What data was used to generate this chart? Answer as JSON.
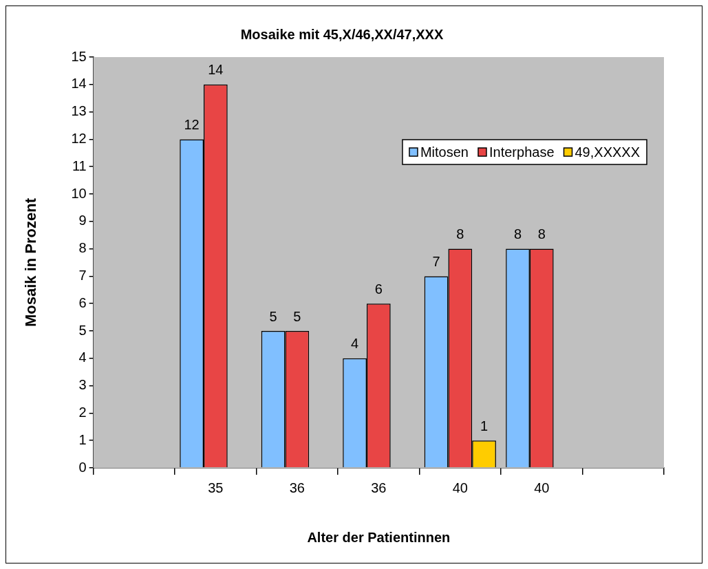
{
  "chart_data": {
    "type": "bar",
    "title": "Mosaike mit 45,X/46,XX/47,XXX",
    "xlabel": "Alter der Patientinnen",
    "ylabel": "Mosaik in Prozent",
    "categories": [
      null,
      "35",
      "36",
      "36",
      "40",
      "40",
      null
    ],
    "series": [
      {
        "name": "Mitosen",
        "color": "#80bfff",
        "values": [
          null,
          12,
          5,
          4,
          7,
          8,
          null
        ]
      },
      {
        "name": "Interphase",
        "color": "#e84545",
        "values": [
          null,
          14,
          5,
          6,
          8,
          8,
          null
        ]
      },
      {
        "name": "49,XXXXX",
        "color": "#ffcc00",
        "values": [
          null,
          null,
          null,
          null,
          1,
          null,
          null
        ]
      }
    ],
    "ylim": [
      0,
      15
    ],
    "yticks": [
      0,
      1,
      2,
      3,
      4,
      5,
      6,
      7,
      8,
      9,
      10,
      11,
      12,
      13,
      14,
      15
    ],
    "grid": false,
    "legend": "top right",
    "data_labels": true
  }
}
